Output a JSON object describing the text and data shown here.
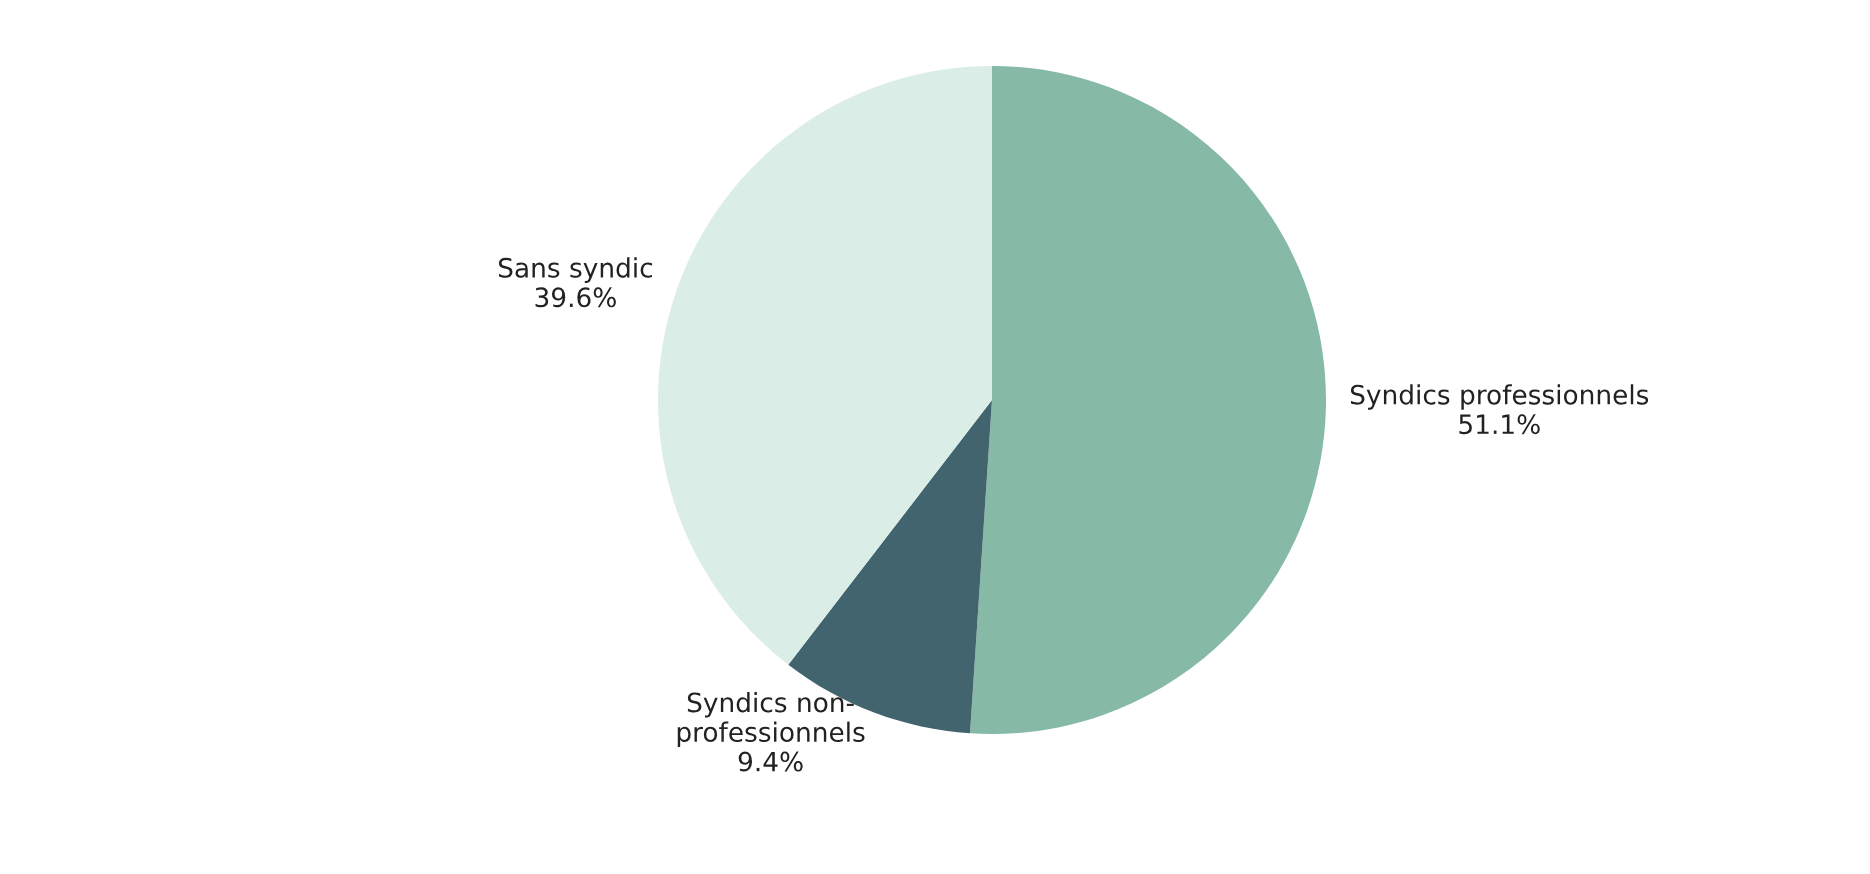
{
  "chart_data": {
    "type": "pie",
    "categories": [
      "Syndics professionnels",
      "Syndics non-\nprofessionnels",
      "Sans syndic"
    ],
    "values": [
      51.1,
      9.4,
      39.6
    ],
    "value_labels": [
      "51.1%",
      "9.4%",
      "39.6%"
    ],
    "colors": [
      "#86baa7",
      "#42646f",
      "#dbede7"
    ]
  }
}
